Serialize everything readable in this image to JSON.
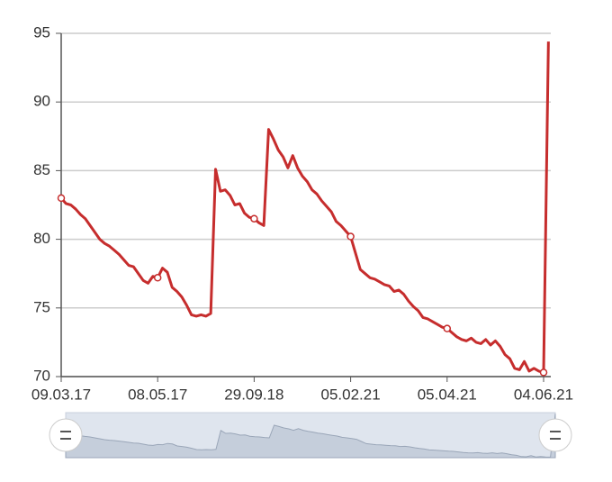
{
  "chart_data": {
    "type": "line",
    "categories": [
      "09.03.17",
      null,
      null,
      null,
      null,
      null,
      null,
      null,
      null,
      null,
      null,
      null,
      null,
      null,
      null,
      null,
      null,
      null,
      null,
      null,
      "08.05.17",
      null,
      null,
      null,
      null,
      null,
      null,
      null,
      null,
      null,
      null,
      null,
      null,
      null,
      null,
      null,
      null,
      null,
      null,
      null,
      "29.09.18",
      null,
      null,
      null,
      null,
      null,
      null,
      null,
      null,
      null,
      null,
      null,
      null,
      null,
      null,
      null,
      null,
      null,
      null,
      null,
      "05.02.21",
      null,
      null,
      null,
      null,
      null,
      null,
      null,
      null,
      null,
      null,
      null,
      null,
      null,
      null,
      null,
      null,
      null,
      null,
      null,
      "05.04.21",
      null,
      null,
      null,
      null,
      null,
      null,
      null,
      null,
      null,
      null,
      null,
      null,
      null,
      null,
      null,
      null,
      null,
      null,
      null,
      "04.06.21",
      null
    ],
    "series": [
      {
        "color": "#c62d2d",
        "values": [
          83,
          82.6,
          82.5,
          82.2,
          81.8,
          81.5,
          81,
          80.5,
          80,
          79.7,
          79.5,
          79.2,
          78.9,
          78.5,
          78.1,
          78,
          77.5,
          77,
          76.8,
          77.3,
          77.2,
          77.9,
          77.6,
          76.5,
          76.2,
          75.8,
          75.2,
          74.5,
          74.4,
          74.5,
          74.4,
          74.6,
          85.1,
          83.5,
          83.6,
          83.2,
          82.5,
          82.6,
          81.9,
          81.6,
          81.5,
          81.2,
          81,
          88,
          87.3,
          86.5,
          86,
          85.2,
          86.1,
          85.2,
          84.6,
          84.2,
          83.6,
          83.3,
          82.8,
          82.4,
          82,
          81.3,
          81,
          80.6,
          80.2,
          79,
          77.8,
          77.5,
          77.2,
          77.1,
          76.9,
          76.7,
          76.6,
          76.2,
          76.3,
          76,
          75.5,
          75.1,
          74.8,
          74.3,
          74.2,
          74,
          73.8,
          73.6,
          73.5,
          73.2,
          72.9,
          72.7,
          72.6,
          72.8,
          72.5,
          72.4,
          72.7,
          72.3,
          72.6,
          72.2,
          71.6,
          71.3,
          70.6,
          70.5,
          71.1,
          70.4,
          70.6,
          70.4,
          70.3,
          94.4
        ]
      }
    ],
    "ylim": [
      70,
      95
    ],
    "yticks": [
      70,
      75,
      80,
      85,
      90,
      95
    ],
    "grid": true
  }
}
